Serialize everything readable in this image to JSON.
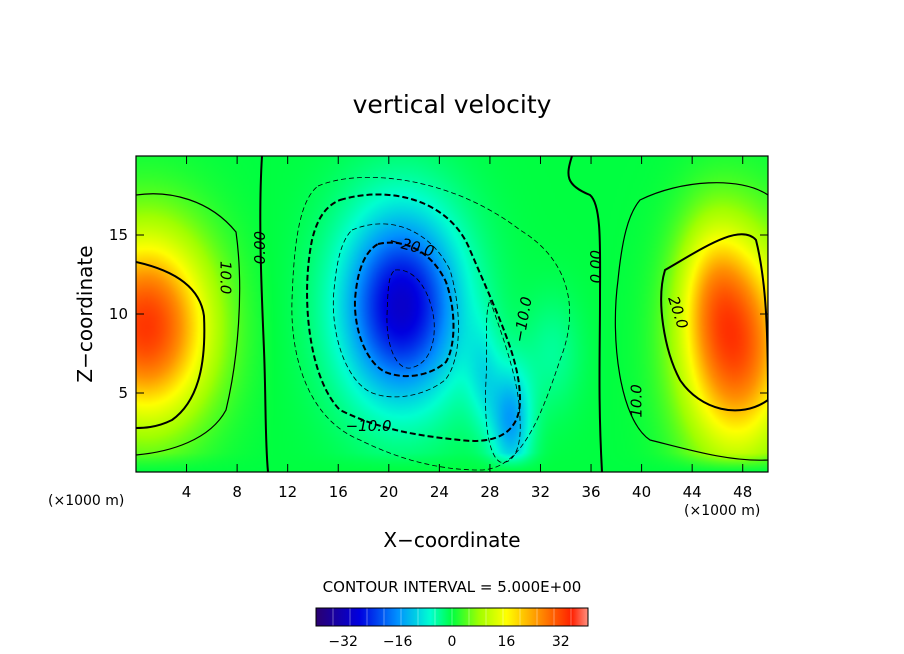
{
  "chart_data": {
    "type": "heatmap",
    "title": "vertical velocity",
    "xlabel": "X−coordinate",
    "ylabel": "Z−coordinate",
    "x_unit_label": "(×1000 m)",
    "y_unit_label": "(×1000 m)",
    "xlim": [
      0,
      50
    ],
    "ylim": [
      0,
      20
    ],
    "x_ticks": [
      4,
      8,
      12,
      16,
      20,
      24,
      28,
      32,
      36,
      40,
      44,
      48
    ],
    "y_ticks": [
      5,
      10,
      15
    ],
    "contour_interval_text": "CONTOUR INTERVAL = 5.000E+00",
    "contour_interval": 5.0,
    "colorbar": {
      "range": [
        -40,
        40
      ],
      "ticks": [
        -32,
        -16,
        0,
        16,
        32
      ],
      "tick_labels": [
        "−32",
        "−16",
        "0",
        "16",
        "32"
      ]
    },
    "contour_labels": [
      {
        "text": "0.00",
        "x": 10.2,
        "z": 14.2,
        "angle": -90
      },
      {
        "text": "10.0",
        "x": 6.7,
        "z": 12.3,
        "angle": 90
      },
      {
        "text": "−20.0",
        "x": 21.7,
        "z": 14.0,
        "angle": 15
      },
      {
        "text": "−10.0",
        "x": 18.4,
        "z": 2.6,
        "angle": 0
      },
      {
        "text": "−10.0",
        "x": 31.0,
        "z": 9.6,
        "angle": -80
      },
      {
        "text": "0.00",
        "x": 36.8,
        "z": 13.0,
        "angle": -90
      },
      {
        "text": "20.0",
        "x": 42.5,
        "z": 10.0,
        "angle": 72
      },
      {
        "text": "10.0",
        "x": 40.0,
        "z": 4.5,
        "angle": -90
      }
    ],
    "features": [
      {
        "name": "left updraft",
        "x": 0.8,
        "z": 9.2,
        "peak": 30
      },
      {
        "name": "central downdraft",
        "x": 21.0,
        "z": 10.5,
        "peak": -30
      },
      {
        "name": "lower downdraft",
        "x": 29.7,
        "z": 3.2,
        "peak": -18
      },
      {
        "name": "right updraft",
        "x": 47.5,
        "z": 8.0,
        "peak": 30
      }
    ]
  }
}
